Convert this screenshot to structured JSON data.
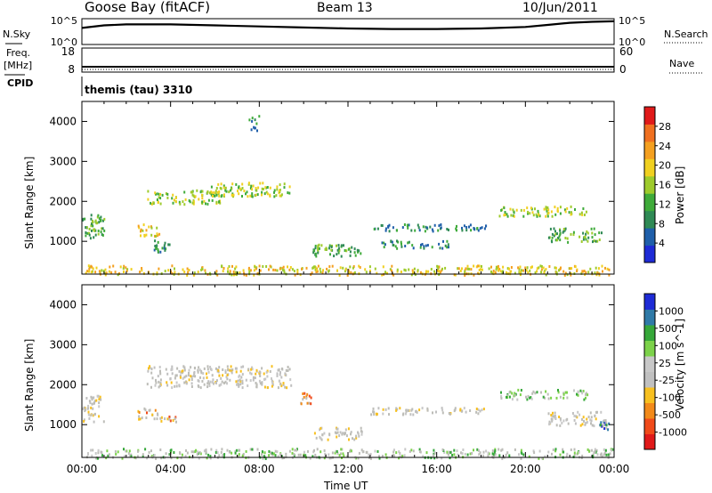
{
  "header": {
    "station": "Goose Bay (fitACF)",
    "beam": "Beam 13",
    "date": "10/Jun/2011"
  },
  "left_labels": {
    "nsky": "N.Sky",
    "freq": "Freq.",
    "freq_unit": "[MHz]",
    "cpid": "CPID"
  },
  "right_labels": {
    "nsearch": "N.Search",
    "nave": "Nave"
  },
  "cpid_text": "themis (tau) 3310",
  "colors": {
    "power": [
      "#1e2bd6",
      "#1f5faa",
      "#2f8a55",
      "#3fab3a",
      "#9ecb2c",
      "#f0d020",
      "#f4a020",
      "#f07020",
      "#e01a1a"
    ],
    "velocity": [
      "#e01a1a",
      "#f04a1a",
      "#f28a1a",
      "#f7c020",
      "#c0c0c0",
      "#c8c8c8",
      "#7cd24a",
      "#36a83a",
      "#2f7aa8",
      "#1e2bd6"
    ],
    "ground_scatter": "#bdbdb8"
  },
  "chart_data": [
    {
      "type": "line",
      "name": "noise",
      "ylabel_left": "N.Sky",
      "ylabel_right": "N.Search",
      "left_ticks": [
        "10^5",
        "10^0"
      ],
      "right_ticks": [
        "10^5",
        "10^0"
      ],
      "x_hours": [
        0,
        1,
        2,
        4,
        6,
        8,
        10,
        12,
        14,
        16,
        18,
        20,
        21,
        22,
        23,
        24
      ],
      "values_log10": [
        3.2,
        3.7,
        3.9,
        3.9,
        3.7,
        3.5,
        3.3,
        3.1,
        3.0,
        3.0,
        3.1,
        3.4,
        3.8,
        4.2,
        4.4,
        4.5
      ]
    },
    {
      "type": "line",
      "name": "frequency_nave",
      "ylabel_left": "Freq. [MHz]",
      "ylabel_right": "Nave",
      "left_ticks": [
        "18",
        "8"
      ],
      "right_ticks": [
        "60",
        "0"
      ],
      "ylim_left": [
        8,
        18
      ],
      "x_hours": [
        0,
        24
      ],
      "values": [
        10.2,
        10.2
      ]
    },
    {
      "type": "heatmap",
      "name": "power",
      "ylabel": "Slant Range [km]",
      "colorbar_label": "Power [dB]",
      "colorbar_ticks": [
        "28",
        "24",
        "20",
        "16",
        "12",
        "8",
        "4"
      ],
      "y_ticks": [
        "4000",
        "3000",
        "2000",
        "1000"
      ],
      "ylim": [
        180,
        4500
      ],
      "xlim": [
        0,
        24
      ],
      "regions": [
        {
          "t0": 0.0,
          "t1": 1.0,
          "r0": 1100,
          "r1": 1750,
          "level": 3
        },
        {
          "t0": 0.0,
          "t1": 24.0,
          "r0": 180,
          "r1": 420,
          "level": 5
        },
        {
          "t0": 2.9,
          "t1": 6.2,
          "r0": 1950,
          "r1": 2300,
          "level": 4
        },
        {
          "t0": 5.8,
          "t1": 9.4,
          "r0": 2150,
          "r1": 2500,
          "level": 4
        },
        {
          "t0": 2.5,
          "t1": 3.5,
          "r0": 1150,
          "r1": 1450,
          "level": 5
        },
        {
          "t0": 3.2,
          "t1": 4.0,
          "r0": 750,
          "r1": 1050,
          "level": 2
        },
        {
          "t0": 10.4,
          "t1": 12.6,
          "r0": 650,
          "r1": 950,
          "level": 3
        },
        {
          "t0": 13.0,
          "t1": 18.2,
          "r0": 1280,
          "r1": 1450,
          "level": 2
        },
        {
          "t0": 13.5,
          "t1": 16.5,
          "r0": 850,
          "r1": 1050,
          "level": 2
        },
        {
          "t0": 18.8,
          "t1": 22.8,
          "r0": 1650,
          "r1": 1900,
          "level": 4
        },
        {
          "t0": 21.0,
          "t1": 23.5,
          "r0": 1000,
          "r1": 1350,
          "level": 3
        },
        {
          "t0": 7.5,
          "t1": 8.0,
          "r0": 3800,
          "r1": 4200,
          "level": 2
        }
      ]
    },
    {
      "type": "heatmap",
      "name": "velocity",
      "ylabel": "Slant Range [km]",
      "colorbar_label": "Velocity [m s^-1]",
      "colorbar_ticks": [
        "1000",
        "500",
        "100",
        "25",
        "-25",
        "-100",
        "-500",
        "-1000"
      ],
      "y_ticks": [
        "4000",
        "3000",
        "2000",
        "1000"
      ],
      "ylim": [
        180,
        4500
      ],
      "xlim": [
        0,
        24
      ],
      "xlabel": "Time UT",
      "x_tick_labels": [
        "00:00",
        "04:00",
        "08:00",
        "12:00",
        "16:00",
        "20:00",
        "00:00"
      ],
      "regions": [
        {
          "t0": 0.0,
          "t1": 1.0,
          "r0": 1100,
          "r1": 1750,
          "level": 4
        },
        {
          "t0": 0.0,
          "t1": 24.0,
          "r0": 180,
          "r1": 420,
          "level": 6
        },
        {
          "t0": 2.9,
          "t1": 9.4,
          "r0": 1950,
          "r1": 2500,
          "level": 4
        },
        {
          "t0": 2.5,
          "t1": 3.4,
          "r0": 1150,
          "r1": 1450,
          "level": 2
        },
        {
          "t0": 3.5,
          "t1": 4.3,
          "r0": 1100,
          "r1": 1250,
          "level": 2
        },
        {
          "t0": 10.4,
          "t1": 12.6,
          "r0": 650,
          "r1": 950,
          "level": 4
        },
        {
          "t0": 9.7,
          "t1": 10.3,
          "r0": 1550,
          "r1": 1850,
          "level": 1
        },
        {
          "t0": 13.0,
          "t1": 18.2,
          "r0": 1280,
          "r1": 1450,
          "level": 4
        },
        {
          "t0": 18.8,
          "t1": 22.8,
          "r0": 1650,
          "r1": 1900,
          "level": 6
        },
        {
          "t0": 21.0,
          "t1": 23.5,
          "r0": 1000,
          "r1": 1350,
          "level": 4
        },
        {
          "t0": 23.3,
          "t1": 23.8,
          "r0": 900,
          "r1": 1150,
          "level": 8
        }
      ]
    }
  ]
}
